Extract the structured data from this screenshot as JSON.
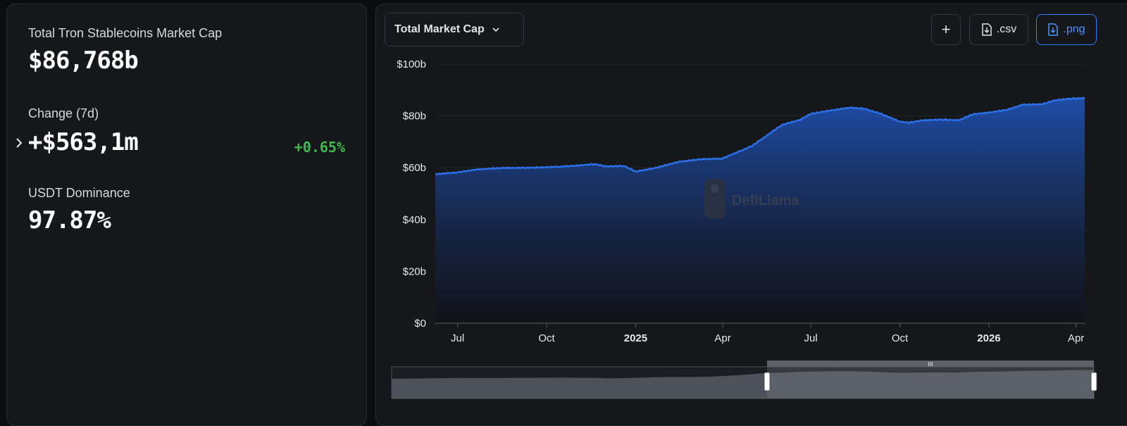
{
  "stats": {
    "market_cap_label": "Total Tron Stablecoins Market Cap",
    "market_cap_value": "$86,768b",
    "change_label": "Change (7d)",
    "change_value": "+$563,1m",
    "change_pct": "+0.65%",
    "dominance_label": "USDT Dominance",
    "dominance_value": "97.87%"
  },
  "toolbar": {
    "metric_select": "Total Market Cap",
    "add_label": "+",
    "csv_label": ".csv",
    "png_label": ".png"
  },
  "watermark": "DefiLlama",
  "colors": {
    "accent": "#2f7cf6",
    "line": "#2b6fe6",
    "positive": "#3fb950"
  },
  "chart_data": {
    "type": "area",
    "title": "",
    "xlabel": "",
    "ylabel": "",
    "ylim": [
      0,
      100
    ],
    "y_ticks": [
      "$0",
      "$20b",
      "$40b",
      "$60b",
      "$80b",
      "$100b"
    ],
    "y_tick_values": [
      0,
      20,
      40,
      60,
      80,
      100
    ],
    "x_ticks": [
      "Jul",
      "Oct",
      "2025",
      "Apr",
      "Jul",
      "Oct",
      "2026",
      "Apr"
    ],
    "x_tick_dates": [
      "2024-07-01",
      "2024-10-01",
      "2025-01-01",
      "2025-04-01",
      "2025-07-01",
      "2025-10-01",
      "2026-01-01",
      "2026-04-01"
    ],
    "x_range": [
      "2024-06-08",
      "2026-04-10"
    ],
    "grid": "horizontal",
    "series": [
      {
        "name": "",
        "x": [
          "2024-06-08",
          "2024-07-01",
          "2024-07-20",
          "2024-08-15",
          "2024-09-15",
          "2024-10-15",
          "2024-11-01",
          "2024-11-20",
          "2024-12-01",
          "2024-12-20",
          "2025-01-01",
          "2025-01-20",
          "2025-02-15",
          "2025-03-10",
          "2025-03-31",
          "2025-04-15",
          "2025-05-01",
          "2025-05-15",
          "2025-06-01",
          "2025-06-20",
          "2025-07-01",
          "2025-07-20",
          "2025-08-10",
          "2025-08-25",
          "2025-09-10",
          "2025-10-01",
          "2025-10-10",
          "2025-10-25",
          "2025-11-15",
          "2025-12-01",
          "2025-12-15",
          "2026-01-01",
          "2026-01-20",
          "2026-02-05",
          "2026-02-25",
          "2026-03-10",
          "2026-03-25",
          "2026-04-10"
        ],
        "values": [
          57.5,
          58.2,
          59.3,
          59.9,
          60.0,
          60.4,
          60.8,
          61.4,
          60.5,
          60.7,
          58.5,
          59.8,
          62.3,
          63.3,
          63.5,
          65.8,
          68.3,
          72.0,
          76.5,
          78.5,
          80.8,
          82.0,
          83.2,
          82.8,
          81.0,
          77.8,
          77.4,
          78.3,
          78.6,
          78.3,
          80.6,
          81.3,
          82.4,
          84.3,
          84.5,
          86.0,
          86.6,
          86.9
        ]
      }
    ]
  }
}
